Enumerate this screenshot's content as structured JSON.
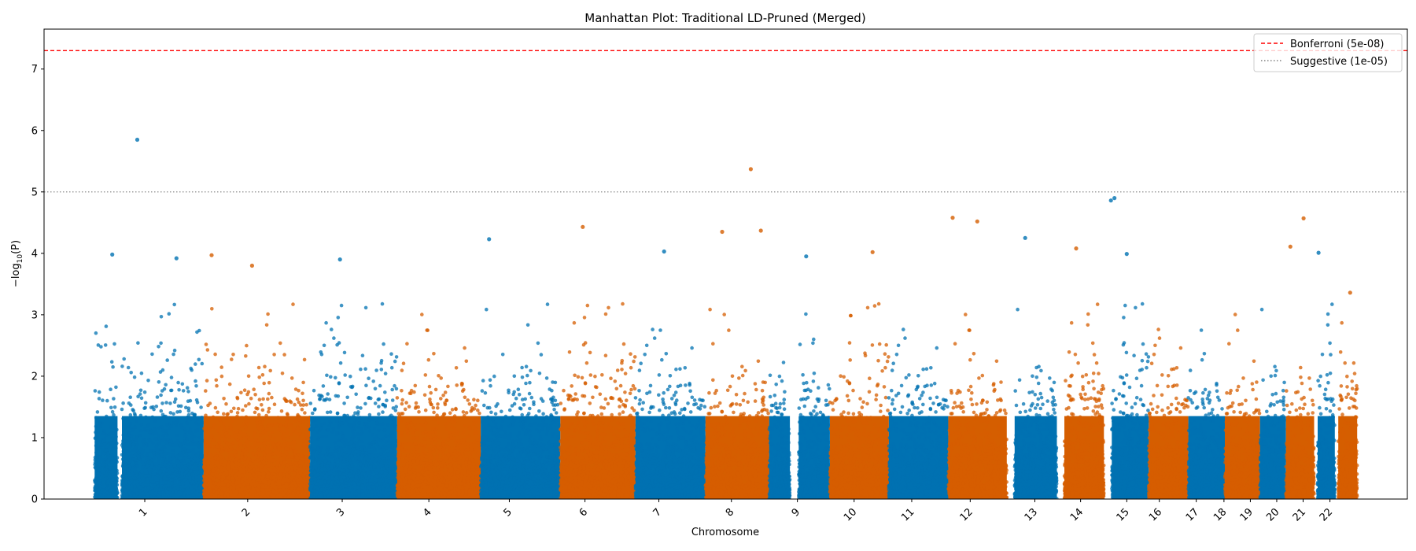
{
  "chart_data": {
    "type": "scatter",
    "title": "Manhattan Plot: Traditional LD-Pruned (Merged)",
    "xlabel": "Chromosome",
    "ylabel_main": "−log",
    "ylabel_sub": "10",
    "ylabel_tail": "(P)",
    "ylim": [
      0,
      7.65
    ],
    "yticks": [
      0,
      1,
      2,
      3,
      4,
      5,
      6,
      7
    ],
    "grid": false,
    "legend_placement": "top-right",
    "colors": {
      "blue": "#0072b2",
      "orange": "#d55e00"
    },
    "chromosomes": [
      {
        "label": "1",
        "start": 0,
        "length": 248,
        "gap": [
          52,
          62
        ],
        "color": "blue"
      },
      {
        "label": "2",
        "start": 248,
        "length": 242,
        "color": "orange"
      },
      {
        "label": "3",
        "start": 490,
        "length": 198,
        "color": "blue"
      },
      {
        "label": "4",
        "start": 688,
        "length": 190,
        "color": "orange"
      },
      {
        "label": "5",
        "start": 878,
        "length": 181,
        "color": "blue"
      },
      {
        "label": "6",
        "start": 1059,
        "length": 171,
        "color": "orange"
      },
      {
        "label": "7",
        "start": 1230,
        "length": 159,
        "color": "blue"
      },
      {
        "label": "8",
        "start": 1389,
        "length": 145,
        "color": "orange"
      },
      {
        "label": "9",
        "start": 1534,
        "length": 138,
        "gap": [
          47,
          67
        ],
        "color": "blue"
      },
      {
        "label": "10",
        "start": 1672,
        "length": 134,
        "color": "orange"
      },
      {
        "label": "11",
        "start": 1806,
        "length": 135,
        "color": "blue"
      },
      {
        "label": "12",
        "start": 1941,
        "length": 133,
        "color": "orange"
      },
      {
        "label": "13",
        "start": 2074,
        "length": 114,
        "lead_gap": 18,
        "color": "blue"
      },
      {
        "label": "14",
        "start": 2188,
        "length": 107,
        "lead_gap": 17,
        "color": "orange"
      },
      {
        "label": "15",
        "start": 2295,
        "length": 102,
        "lead_gap": 18,
        "color": "blue"
      },
      {
        "label": "16",
        "start": 2397,
        "length": 90,
        "color": "orange"
      },
      {
        "label": "17",
        "start": 2487,
        "length": 83,
        "color": "blue"
      },
      {
        "label": "18",
        "start": 2570,
        "length": 80,
        "color": "orange"
      },
      {
        "label": "19",
        "start": 2650,
        "length": 59,
        "color": "blue"
      },
      {
        "label": "20",
        "start": 2709,
        "length": 64,
        "color": "orange"
      },
      {
        "label": "21",
        "start": 2773,
        "length": 47,
        "lead_gap": 8,
        "color": "blue"
      },
      {
        "label": "22",
        "start": 2820,
        "length": 51,
        "lead_gap": 8,
        "color": "orange"
      }
    ],
    "xlim": [
      -115,
      2985
    ],
    "tick_positions": [
      {
        "label": "1",
        "pos": 114
      },
      {
        "label": "2",
        "pos": 348
      },
      {
        "label": "3",
        "pos": 563
      },
      {
        "label": "4",
        "pos": 760
      },
      {
        "label": "5",
        "pos": 943
      },
      {
        "label": "6",
        "pos": 1115
      },
      {
        "label": "7",
        "pos": 1283
      },
      {
        "label": "8",
        "pos": 1448
      },
      {
        "label": "9",
        "pos": 1598
      },
      {
        "label": "10",
        "pos": 1727
      },
      {
        "label": "11",
        "pos": 1858
      },
      {
        "label": "12",
        "pos": 1991
      },
      {
        "label": "13",
        "pos": 2138
      },
      {
        "label": "14",
        "pos": 2242
      },
      {
        "label": "15",
        "pos": 2347
      },
      {
        "label": "16",
        "pos": 2421
      },
      {
        "label": "17",
        "pos": 2505
      },
      {
        "label": "18",
        "pos": 2568
      },
      {
        "label": "19",
        "pos": 2628
      },
      {
        "label": "20",
        "pos": 2688
      },
      {
        "label": "21",
        "pos": 2748
      },
      {
        "label": "22",
        "pos": 2809
      }
    ],
    "thresholds": [
      {
        "name": "Bonferroni (5e-08)",
        "value": 7.3,
        "color": "#ff0000",
        "style": "dashed"
      },
      {
        "name": "Suggestive (1e-05)",
        "value": 5.0,
        "color": "#808080",
        "style": "dotted"
      }
    ],
    "top_hits": [
      {
        "chrom": "1",
        "pos": 97,
        "y": 5.85
      },
      {
        "chrom": "1",
        "pos": 40,
        "y": 3.98
      },
      {
        "chrom": "1",
        "pos": 186,
        "y": 3.92
      },
      {
        "chrom": "2",
        "pos": 18,
        "y": 3.97
      },
      {
        "chrom": "2",
        "pos": 110,
        "y": 3.8
      },
      {
        "chrom": "3",
        "pos": 68,
        "y": 3.9
      },
      {
        "chrom": "5",
        "pos": 19,
        "y": 4.23
      },
      {
        "chrom": "6",
        "pos": 51,
        "y": 4.43
      },
      {
        "chrom": "7",
        "pos": 65,
        "y": 4.03
      },
      {
        "chrom": "8",
        "pos": 103,
        "y": 5.37
      },
      {
        "chrom": "8",
        "pos": 38,
        "y": 4.35
      },
      {
        "chrom": "8",
        "pos": 126,
        "y": 4.37
      },
      {
        "chrom": "9",
        "pos": 84,
        "y": 3.95
      },
      {
        "chrom": "10",
        "pos": 97,
        "y": 4.02
      },
      {
        "chrom": "12",
        "pos": 10,
        "y": 4.58
      },
      {
        "chrom": "12",
        "pos": 66,
        "y": 4.52
      },
      {
        "chrom": "13",
        "pos": 42,
        "y": 4.25
      },
      {
        "chrom": "14",
        "pos": 44,
        "y": 4.08
      },
      {
        "chrom": "15",
        "pos": 16,
        "y": 4.86
      },
      {
        "chrom": "15",
        "pos": 24,
        "y": 4.9
      },
      {
        "chrom": "15",
        "pos": 52,
        "y": 3.99
      },
      {
        "chrom": "20",
        "pos": 40,
        "y": 4.57
      },
      {
        "chrom": "20",
        "pos": 10,
        "y": 4.11
      },
      {
        "chrom": "21",
        "pos": 10,
        "y": 4.01
      },
      {
        "chrom": "22",
        "pos": 35,
        "y": 3.36
      }
    ]
  }
}
